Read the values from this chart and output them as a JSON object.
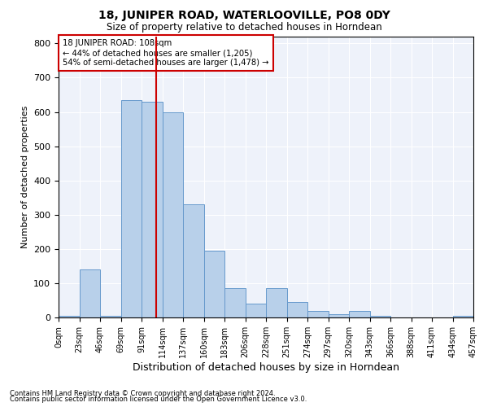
{
  "title": "18, JUNIPER ROAD, WATERLOOVILLE, PO8 0DY",
  "subtitle": "Size of property relative to detached houses in Horndean",
  "xlabel": "Distribution of detached houses by size in Horndean",
  "ylabel": "Number of detached properties",
  "bar_color": "#b8d0ea",
  "bar_edge_color": "#6699cc",
  "background_color": "#eef2fa",
  "grid_color": "#ffffff",
  "annotation_text": "18 JUNIPER ROAD: 108sqm\n← 44% of detached houses are smaller (1,205)\n54% of semi-detached houses are larger (1,478) →",
  "annotation_box_color": "#ffffff",
  "annotation_box_edge": "#cc0000",
  "property_line_x": 5,
  "property_line_color": "#cc0000",
  "tick_labels": [
    "0sqm",
    "23sqm",
    "46sqm",
    "69sqm",
    "91sqm",
    "114sqm",
    "137sqm",
    "160sqm",
    "183sqm",
    "206sqm",
    "228sqm",
    "251sqm",
    "274sqm",
    "297sqm",
    "320sqm",
    "343sqm",
    "366sqm",
    "388sqm",
    "411sqm",
    "434sqm",
    "457sqm"
  ],
  "bar_heights": [
    5,
    140,
    5,
    635,
    630,
    600,
    330,
    195,
    85,
    40,
    85,
    45,
    20,
    10,
    20,
    5,
    0,
    0,
    0,
    5
  ],
  "ylim": [
    0,
    820
  ],
  "yticks": [
    0,
    100,
    200,
    300,
    400,
    500,
    600,
    700,
    800
  ],
  "footnote1": "Contains HM Land Registry data © Crown copyright and database right 2024.",
  "footnote2": "Contains public sector information licensed under the Open Government Licence v3.0."
}
